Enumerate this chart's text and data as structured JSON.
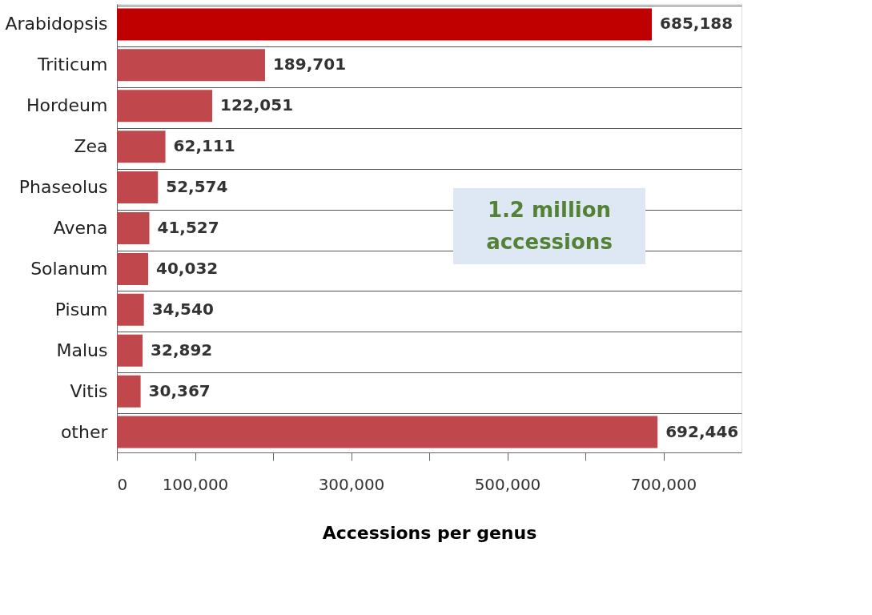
{
  "chart_data": {
    "type": "bar",
    "orientation": "horizontal",
    "xlabel": "Accessions per genus",
    "categories": [
      "Arabidopsis",
      "Triticum",
      "Hordeum",
      "Zea",
      "Phaseolus",
      "Avena",
      "Solanum",
      "Pisum",
      "Malus",
      "Vitis",
      "other"
    ],
    "values": [
      685188,
      189701,
      122051,
      62111,
      52574,
      41527,
      40032,
      34540,
      32892,
      30367,
      692446
    ],
    "colors": [
      "#c00000",
      "#c0474c",
      "#c0474c",
      "#c0474c",
      "#c0474c",
      "#c0474c",
      "#c0474c",
      "#c0474c",
      "#c0474c",
      "#c0474c",
      "#c0474c"
    ],
    "xlim": [
      0,
      800000
    ],
    "xticks": [
      0,
      {
        "value": 100000,
        "label": "100,000"
      },
      {
        "value": 200000,
        "label": null
      },
      {
        "value": 300000,
        "label": "300,000"
      },
      {
        "value": 400000,
        "label": null
      },
      {
        "value": 500000,
        "label": "500,000"
      },
      {
        "value": 600000,
        "label": null
      },
      {
        "value": 700000,
        "label": "700,000"
      }
    ],
    "value_labels": [
      "685,188",
      "189,701",
      "122,051",
      "62,111",
      "52,574",
      "41,527",
      "40,032",
      "34,540",
      "32,892",
      "30,367",
      "692,446"
    ],
    "grid": "y",
    "annotations": [
      "1.2 million accessions"
    ]
  }
}
